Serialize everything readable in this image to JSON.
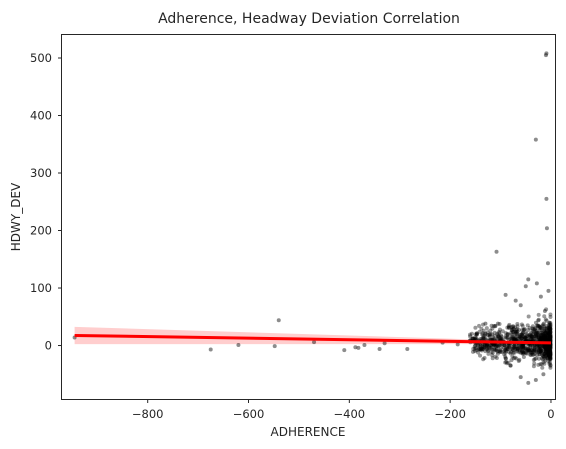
{
  "chart_data": {
    "type": "scatter",
    "title": "Adherence, Headway Deviation Correlation",
    "xlabel": "ADHERENCE",
    "ylabel": "HDWY_DEV",
    "xlim": [
      -970,
      8
    ],
    "ylim": [
      -93,
      540
    ],
    "xticks": [
      -800,
      -600,
      -400,
      -200,
      0
    ],
    "xtick_labels": [
      "−800",
      "−600",
      "−400",
      "−200",
      "0"
    ],
    "yticks": [
      0,
      100,
      200,
      300,
      400,
      500
    ],
    "ytick_labels": [
      "0",
      "100",
      "200",
      "300",
      "400",
      "500"
    ],
    "grid": false,
    "legend": "none",
    "marker_color": "#000000",
    "marker_alpha": 0.4,
    "fit_color": "#ff0000",
    "ci_color": "#ffb3b3",
    "points": [
      [
        -945,
        14
      ],
      [
        -675,
        -7
      ],
      [
        -620,
        1
      ],
      [
        -548,
        -1
      ],
      [
        -540,
        44
      ],
      [
        -470,
        6
      ],
      [
        -410,
        -8
      ],
      [
        -388,
        -3
      ],
      [
        -382,
        -4
      ],
      [
        -370,
        1
      ],
      [
        -340,
        -6
      ],
      [
        -330,
        4
      ],
      [
        -285,
        -6
      ],
      [
        -215,
        5
      ],
      [
        -185,
        2
      ],
      [
        -108,
        163
      ],
      [
        -130,
        38
      ],
      [
        -90,
        88
      ],
      [
        -70,
        78
      ],
      [
        -60,
        70
      ],
      [
        -50,
        103
      ],
      [
        -45,
        115
      ],
      [
        -30,
        358
      ],
      [
        -28,
        108
      ],
      [
        -20,
        85
      ],
      [
        -10,
        505
      ],
      [
        -9,
        508
      ],
      [
        -9,
        255
      ],
      [
        -8,
        204
      ],
      [
        -6,
        143
      ],
      [
        -80,
        -35
      ],
      [
        -60,
        -55
      ],
      [
        -45,
        -65
      ],
      [
        -30,
        -60
      ],
      [
        -15,
        -50
      ],
      [
        -12,
        60
      ],
      [
        -5,
        95
      ],
      [
        -100,
        10
      ],
      [
        -120,
        -5
      ],
      [
        -140,
        0
      ]
    ],
    "dense_cluster": {
      "x_range": [
        -160,
        0
      ],
      "y_range": [
        -40,
        80
      ],
      "count": 900
    },
    "regression": {
      "x": [
        -945,
        0
      ],
      "y": [
        17.5,
        4.5
      ],
      "ci_halfwidth": [
        15,
        2
      ]
    }
  }
}
